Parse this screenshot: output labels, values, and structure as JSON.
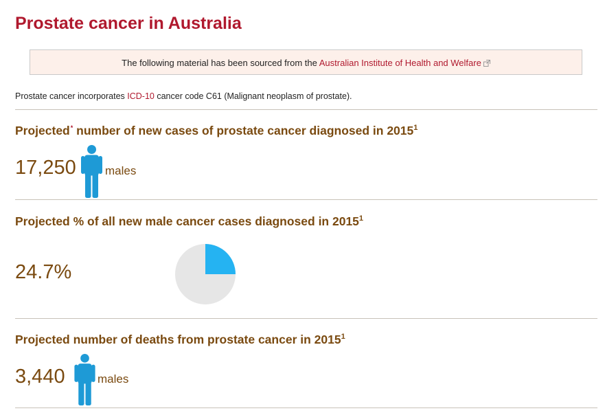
{
  "page": {
    "title": "Prostate cancer in Australia"
  },
  "source_notice": {
    "text_before": "The following material has been sourced from the ",
    "link_text": "Australian Institute of Health and Welfare",
    "icon": "external-link-icon"
  },
  "intro": {
    "text_before": "Prostate cancer incorporates ",
    "link_text": "ICD-10",
    "text_after": " cancer code C61 (Malignant neoplasm of prostate)."
  },
  "stats": [
    {
      "heading_before": "Projected",
      "heading_star": "*",
      "heading_after": " number of new cases of prostate cancer diagnosed in 2015",
      "footnote": "1",
      "value": "17,250",
      "unit": "males",
      "icon": "male-person-icon"
    },
    {
      "heading_before": "Projected % of all new male cancer cases diagnosed in 2015",
      "footnote": "1",
      "value": "24.7%",
      "pie_fraction": 0.25
    },
    {
      "heading_before": "Projected number of deaths from prostate cancer in 2015",
      "footnote": "1",
      "value": "3,440",
      "unit": "males",
      "icon": "male-person-icon"
    }
  ],
  "colors": {
    "title": "#b0192e",
    "heading": "#7a4a10",
    "person_icon": "#1e9ad6",
    "pie_fill": "#25b3f2",
    "pie_background": "#e6e6e6"
  }
}
